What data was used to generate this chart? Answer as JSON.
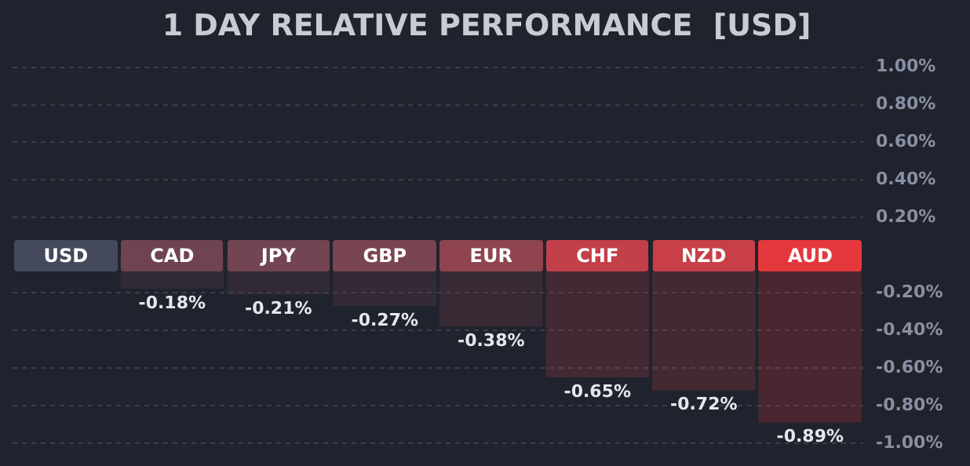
{
  "chart_data": {
    "type": "bar",
    "title": "1 DAY RELATIVE PERFORMANCE  [USD]",
    "categories": [
      "USD",
      "CAD",
      "JPY",
      "GBP",
      "EUR",
      "CHF",
      "NZD",
      "AUD"
    ],
    "values": [
      0,
      -0.18,
      -0.21,
      -0.27,
      -0.38,
      -0.65,
      -0.72,
      -0.89
    ],
    "colors": [
      "#444a5b",
      "#6f4351",
      "#734452",
      "#7a4552",
      "#8f4450",
      "#c2404a",
      "#c93f48",
      "#e4383d"
    ],
    "value_labels": [
      null,
      "-0.18%",
      "-0.21%",
      "-0.27%",
      "-0.38%",
      "-0.65%",
      "-0.72%",
      "-0.89%"
    ],
    "ylim": [
      -1.0,
      1.0
    ],
    "yticks": [
      {
        "value": 1.0,
        "label": "1.00%"
      },
      {
        "value": 0.8,
        "label": "0.80%"
      },
      {
        "value": 0.6,
        "label": "0.60%"
      },
      {
        "value": 0.4,
        "label": "0.40%"
      },
      {
        "value": 0.2,
        "label": "0.20%"
      },
      {
        "value": -0.2,
        "label": "-0.20%"
      },
      {
        "value": -0.4,
        "label": "-0.40%"
      },
      {
        "value": -0.6,
        "label": "-0.60%"
      },
      {
        "value": -0.8,
        "label": "-0.80%"
      },
      {
        "value": -1.0,
        "label": "-1.00%"
      }
    ],
    "grid": "y",
    "legend": false
  }
}
